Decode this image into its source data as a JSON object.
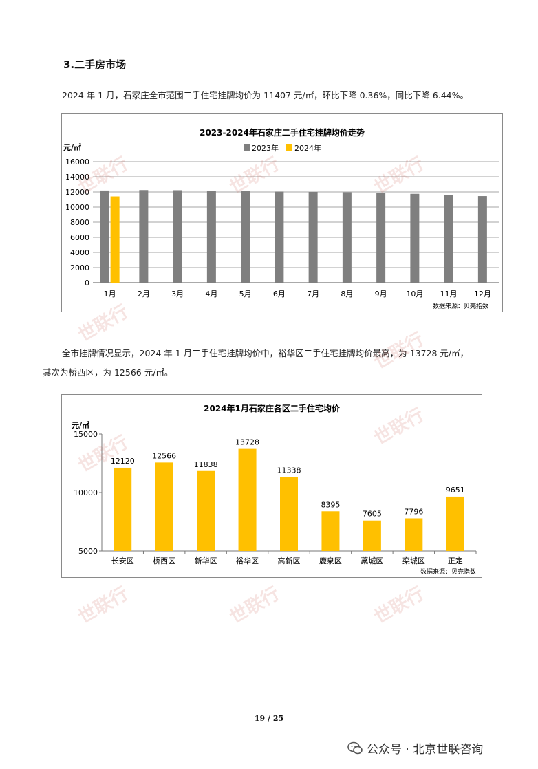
{
  "section": {
    "title": "3.二手房市场"
  },
  "paragraph1": "2024 年 1 月，石家庄全市范围二手住宅挂牌均价为 11407 元/㎡，环比下降 0.36%，同比下降 6.44%。",
  "paragraph2": {
    "line1": "全市挂牌情况显示，2024 年 1 月二手住宅挂牌均价中，裕华区二手住宅挂牌均价最高，为 13728 元/㎡，",
    "line2": "其次为桥西区，为 12566 元/㎡。"
  },
  "watermark": "世联行",
  "footer": {
    "page": "19 / 25",
    "account": "公众号 · 北京世联咨询"
  },
  "colors": {
    "gray": "#7f7f7f",
    "yellow": "#ffc000",
    "grid": "#a6a6a6"
  },
  "chart_data": [
    {
      "type": "bar",
      "title": "2023-2024年石家庄二手住宅挂牌均价走势",
      "ylabel": "元/㎡",
      "source": "数据来源：贝壳指数",
      "categories": [
        "1月",
        "2月",
        "3月",
        "4月",
        "5月",
        "6月",
        "7月",
        "8月",
        "9月",
        "10月",
        "11月",
        "12月"
      ],
      "series": [
        {
          "name": "2023年",
          "color": "#7f7f7f",
          "values": [
            12190,
            12250,
            12230,
            12180,
            12100,
            12050,
            12000,
            11950,
            11900,
            11750,
            11600,
            11450
          ]
        },
        {
          "name": "2024年",
          "color": "#ffc000",
          "values": [
            11407,
            null,
            null,
            null,
            null,
            null,
            null,
            null,
            null,
            null,
            null,
            null
          ]
        }
      ],
      "ylim": [
        0,
        16000
      ],
      "yticks": [
        0,
        2000,
        4000,
        6000,
        8000,
        10000,
        12000,
        14000,
        16000
      ],
      "grid": true,
      "legend": "top"
    },
    {
      "type": "bar",
      "title": "2024年1月石家庄各区二手住宅均价",
      "ylabel": "元/㎡",
      "source": "数据来源：贝壳指数",
      "categories": [
        "长安区",
        "桥西区",
        "新华区",
        "裕华区",
        "高新区",
        "鹿泉区",
        "藁城区",
        "栾城区",
        "正定"
      ],
      "series": [
        {
          "color": "#ffc000",
          "values": [
            12120,
            12566,
            11838,
            13728,
            11338,
            8395,
            7605,
            7796,
            9651
          ]
        }
      ],
      "ylim": [
        5000,
        15000
      ],
      "yticks": [
        5000,
        10000,
        15000
      ],
      "grid": false,
      "data_labels": true
    }
  ]
}
